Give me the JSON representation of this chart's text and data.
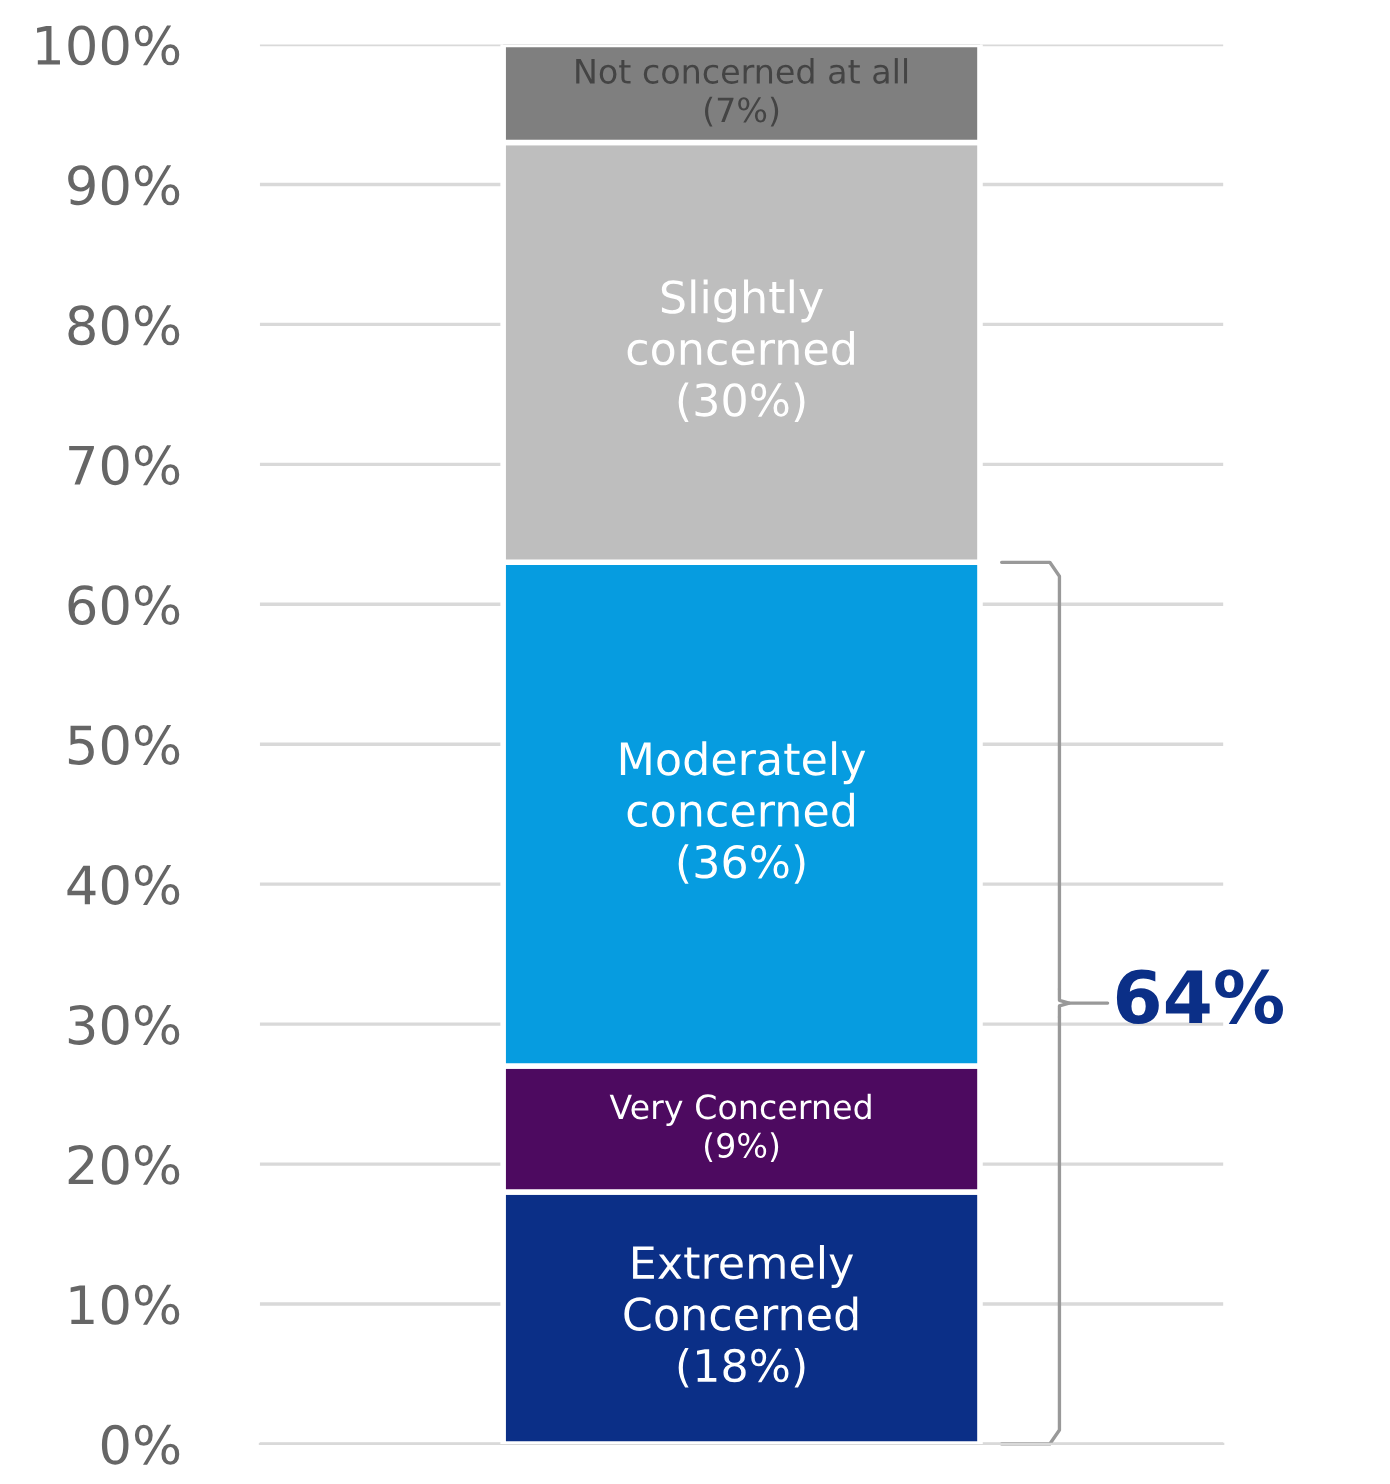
{
  "chart_data": {
    "type": "bar",
    "stacked": true,
    "categories": [
      null
    ],
    "series": [
      {
        "name": "Extremely Concerned",
        "color": "#0b2f87",
        "values": [
          18
        ],
        "value_labels": [
          "(18%)"
        ]
      },
      {
        "name": "Very Concerned",
        "color": "#4d0a60",
        "values": [
          9
        ],
        "value_labels": [
          "(9%)"
        ]
      },
      {
        "name": "Moderately concerned",
        "color": "#069ce0",
        "values": [
          36
        ],
        "value_labels": [
          "(36%)"
        ]
      },
      {
        "name": "Slightly concerned",
        "color": "#bebebe",
        "values": [
          30
        ],
        "value_labels": [
          "(30%)"
        ]
      },
      {
        "name": "Not concerned at all",
        "color": "#7f7f7f",
        "values": [
          7
        ],
        "value_labels": [
          "(7%)"
        ]
      }
    ],
    "ylim": [
      0,
      100
    ],
    "yticks": [
      {
        "value": 0,
        "label": "0%"
      },
      {
        "value": 10,
        "label": "10%"
      },
      {
        "value": 20,
        "label": "20%"
      },
      {
        "value": 30,
        "label": "30%"
      },
      {
        "value": 40,
        "label": "40%"
      },
      {
        "value": 50,
        "label": "50%"
      },
      {
        "value": 60,
        "label": "60%"
      },
      {
        "value": 70,
        "label": "70%"
      },
      {
        "value": 80,
        "label": "80%"
      },
      {
        "value": 90,
        "label": "90%"
      },
      {
        "value": 100,
        "label": "100%"
      }
    ],
    "annotations": [
      "64%"
    ],
    "grid": "y",
    "tick_labels": "y"
  }
}
